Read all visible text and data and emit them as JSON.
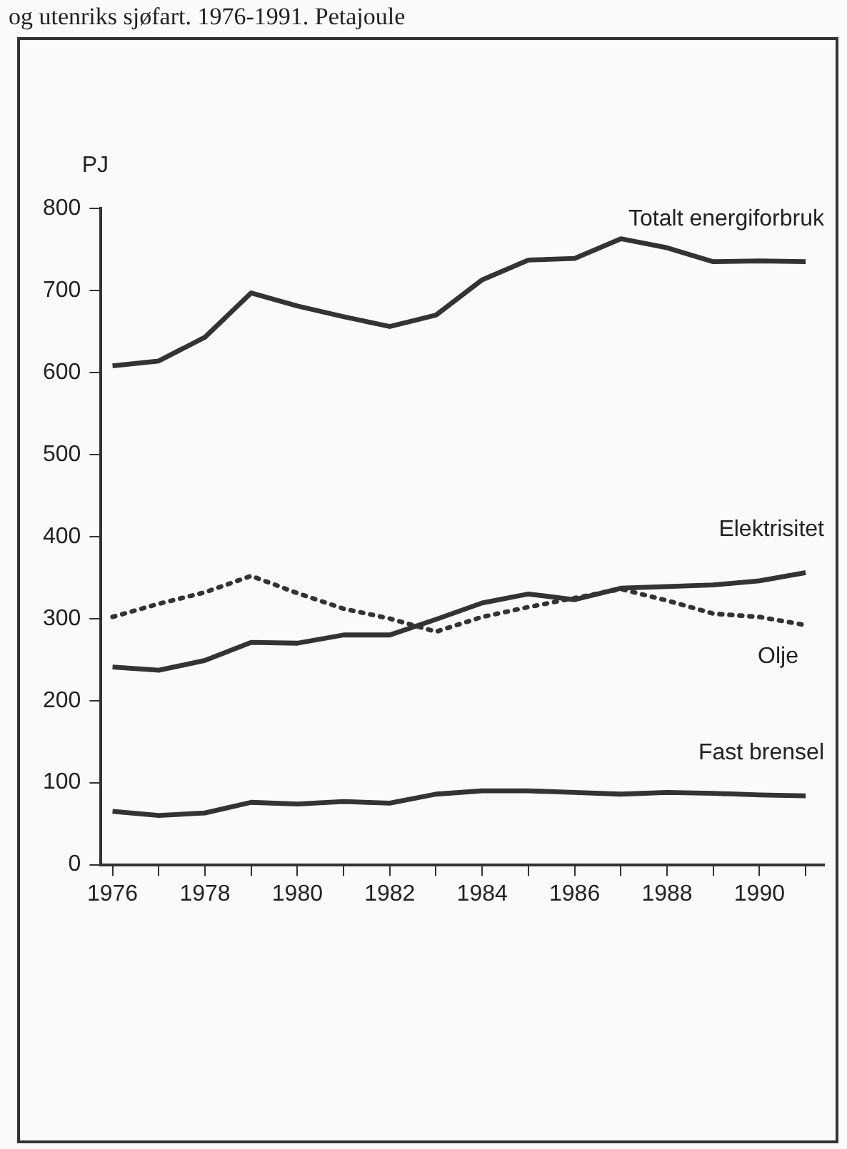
{
  "chart_data": {
    "type": "line",
    "title": "og utenriks sjøfart. 1976-1991. Petajoule",
    "ylabel": "PJ",
    "x": [
      1976,
      1977,
      1978,
      1979,
      1980,
      1981,
      1982,
      1983,
      1984,
      1985,
      1986,
      1987,
      1988,
      1989,
      1990,
      1991
    ],
    "series": [
      {
        "name": "Totalt energiforbruk",
        "color": "#333333",
        "line_style": "solid",
        "values": [
          608,
          614,
          643,
          697,
          681,
          668,
          656,
          670,
          713,
          737,
          739,
          763,
          752,
          735,
          736,
          735
        ]
      },
      {
        "name": "Elektrisitet",
        "color": "#333333",
        "line_style": "solid",
        "values": [
          241,
          237,
          249,
          271,
          270,
          280,
          280,
          299,
          319,
          330,
          323,
          337,
          339,
          341,
          346,
          356
        ]
      },
      {
        "name": "Olje",
        "color": "#333333",
        "line_style": "dotted",
        "values": [
          302,
          318,
          332,
          352,
          331,
          312,
          300,
          284,
          302,
          314,
          325,
          336,
          322,
          306,
          302,
          292
        ]
      },
      {
        "name": "Fast brensel",
        "color": "#333333",
        "line_style": "solid",
        "values": [
          65,
          60,
          63,
          76,
          74,
          77,
          75,
          86,
          90,
          90,
          88,
          86,
          88,
          87,
          85,
          84
        ]
      }
    ],
    "xlim": [
      1975.75,
      1991.4
    ],
    "xticks": [
      1976,
      {
        "value": 1977,
        "label": null
      },
      1978,
      {
        "value": 1979,
        "label": null
      },
      1980,
      {
        "value": 1981,
        "label": null
      },
      1982,
      {
        "value": 1983,
        "label": null
      },
      1984,
      {
        "value": 1985,
        "label": null
      },
      1986,
      {
        "value": 1987,
        "label": null
      },
      1988,
      {
        "value": 1989,
        "label": null
      },
      1990,
      {
        "value": 1991,
        "label": null
      }
    ],
    "ylim": [
      0,
      800
    ],
    "yticks": [
      0,
      100,
      200,
      300,
      400,
      500,
      600,
      700,
      800
    ],
    "grid": false,
    "legend": false,
    "marker": "none"
  }
}
